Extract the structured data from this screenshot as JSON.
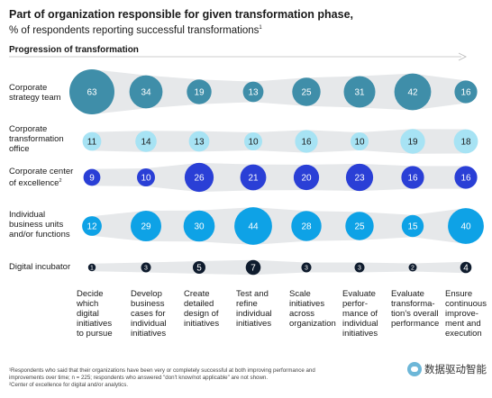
{
  "header": {
    "title": "Part of organization responsible for given transformation phase,",
    "subtitle": "% of respondents reporting successful transformations",
    "subtitle_mark": "1",
    "progression_label": "Progression of transformation"
  },
  "chart_data": {
    "type": "bubble-matrix",
    "categories": [
      "Decide which digital initiatives to pursue",
      "Develop business cases for individual initiatives",
      "Create detailed design of initiatives",
      "Test and refine individual initiatives",
      "Scale initiatives across organization",
      "Evaluate performance of individual initiatives",
      "Evaluate transformation's overall performance",
      "Ensure continuous improvement and execution"
    ],
    "category_display": [
      [
        "Decide",
        "which",
        "digital",
        "initiatives",
        "to pursue"
      ],
      [
        "Develop",
        "business",
        "cases for",
        "individual",
        "initiatives"
      ],
      [
        "Create",
        "detailed",
        "design of",
        "initiatives"
      ],
      [
        "Test and",
        "refine",
        "individual",
        "initiatives"
      ],
      [
        "Scale",
        "initiatives",
        "across",
        "organization"
      ],
      [
        "Evaluate",
        "perfor-",
        "mance of",
        "individual",
        "initiatives"
      ],
      [
        "Evaluate",
        "transforma-",
        "tion's overall",
        "performance"
      ],
      [
        "Ensure",
        "continuous",
        "improve-",
        "ment and",
        "execution"
      ]
    ],
    "series": [
      {
        "name": "Corporate strategy team",
        "label_lines": [
          "Corporate",
          "strategy team"
        ],
        "label_mark": "",
        "color": "#3f8ea9",
        "text_color": "#ffffff",
        "values": [
          63,
          34,
          19,
          13,
          25,
          31,
          42,
          16
        ]
      },
      {
        "name": "Corporate transformation office",
        "label_lines": [
          "Corporate",
          "transformation",
          "office"
        ],
        "label_mark": "",
        "color": "#a7e3f4",
        "text_color": "#1a1a1a",
        "values": [
          11,
          14,
          13,
          10,
          16,
          10,
          19,
          18
        ]
      },
      {
        "name": "Corporate center of excellence",
        "label_lines": [
          "Corporate center",
          "of excellence"
        ],
        "label_mark": "2",
        "color": "#2a3fd6",
        "text_color": "#ffffff",
        "values": [
          9,
          10,
          26,
          21,
          20,
          23,
          16,
          16
        ]
      },
      {
        "name": "Individual business units and/or functions",
        "label_lines": [
          "Individual",
          "business units",
          "and/or functions"
        ],
        "label_mark": "",
        "color": "#0ea2e6",
        "text_color": "#ffffff",
        "values": [
          12,
          29,
          30,
          44,
          28,
          25,
          15,
          40
        ]
      },
      {
        "name": "Digital incubator",
        "label_lines": [
          "Digital incubator"
        ],
        "label_mark": "",
        "color": "#0f1c2e",
        "text_color": "#ffffff",
        "values": [
          1,
          3,
          5,
          7,
          3,
          3,
          2,
          4
        ]
      }
    ],
    "band_color": "#e6e8ea",
    "arrow_color": "#bbbbbb"
  },
  "footnotes": [
    "¹Respondents who said that their organizations have been very or completely successful at both improving performance and",
    "  improvements over time; n = 225; respondents who answered \"don't know/not applicable\" are not shown.",
    "²Center of excellence for digital and/or analytics."
  ],
  "watermark": {
    "text": "数据驱动智能",
    "icon": "wechat-icon"
  }
}
